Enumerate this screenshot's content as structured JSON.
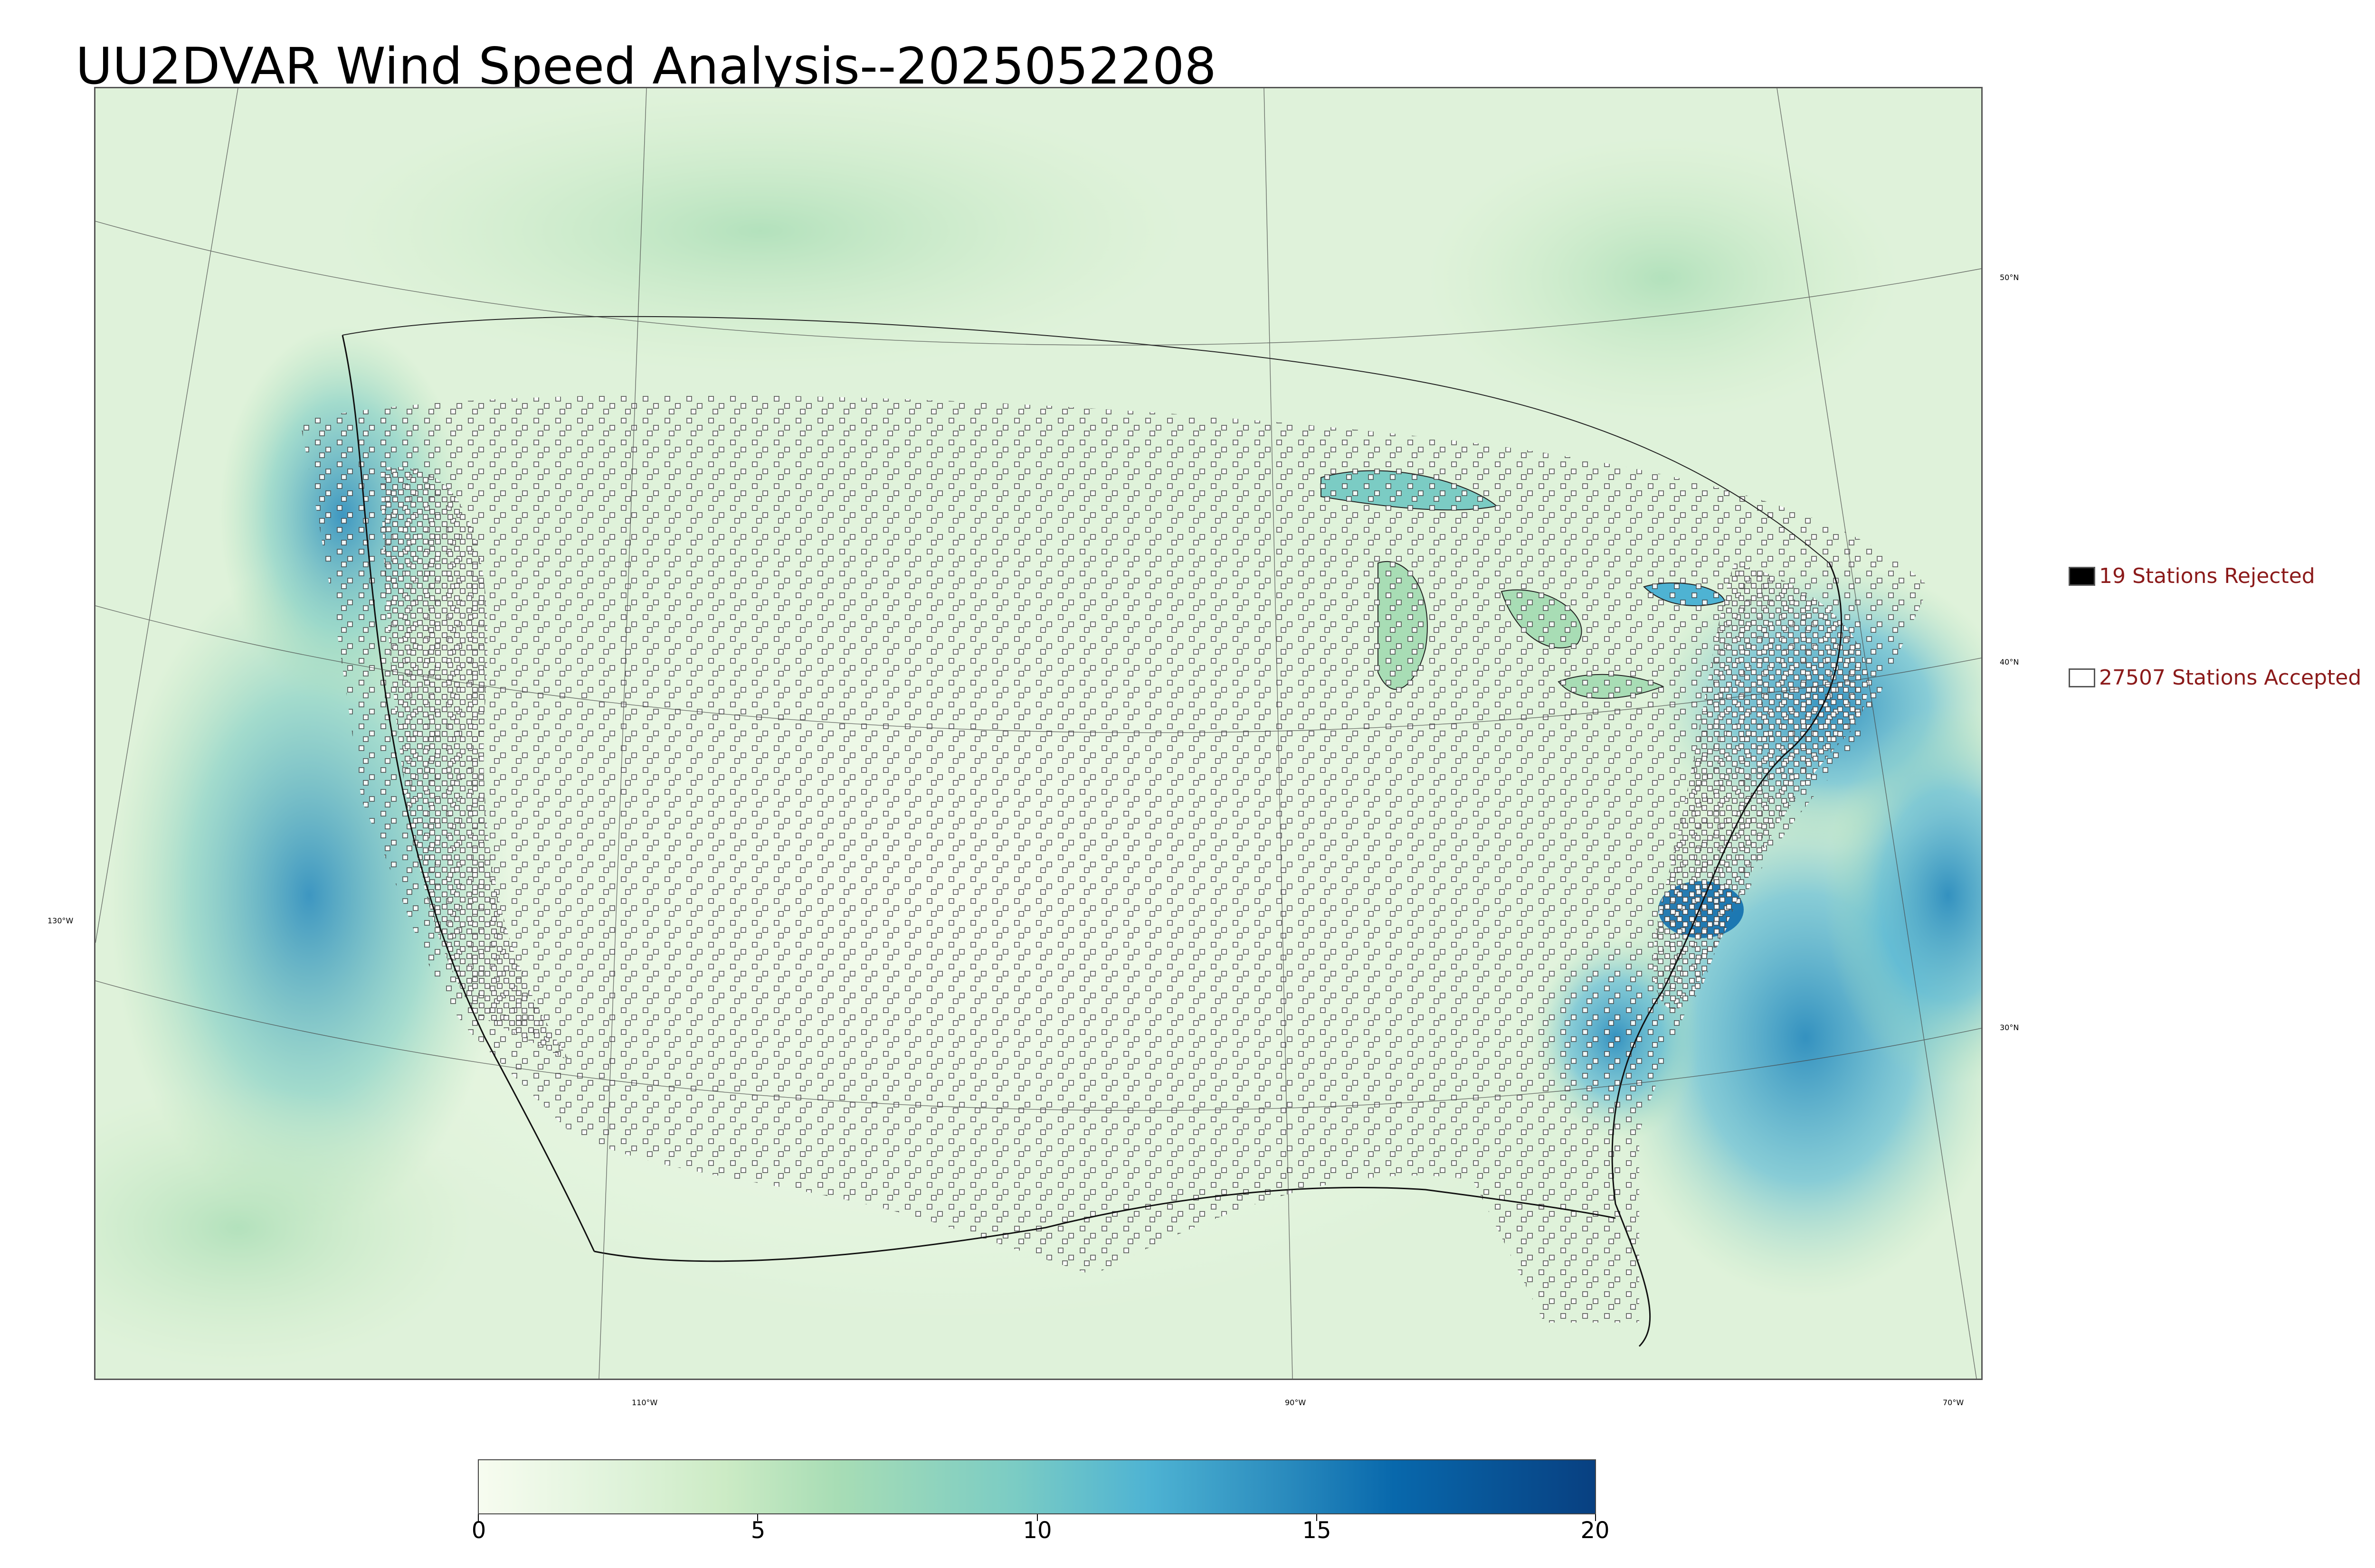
{
  "title": "UU2DVAR Wind Speed Analysis--2025052208",
  "legend": {
    "rejected": {
      "label": "19 Stations Rejected",
      "color": "#000000"
    },
    "accepted": {
      "label": "27507 Stations Accepted",
      "color": "#ffffff"
    }
  },
  "graticule": {
    "lat_labels": [
      "50°N",
      "40°N",
      "30°N"
    ],
    "lon_labels": [
      "130°W",
      "110°W",
      "90°W",
      "70°W"
    ]
  },
  "colorbar": {
    "ticks": [
      "0",
      "5",
      "10",
      "15",
      "20"
    ],
    "range": [
      0,
      20
    ],
    "colors": [
      "#f7fcf0",
      "#e0f3db",
      "#ccebc5",
      "#a8ddb5",
      "#7bccc4",
      "#4eb3d3",
      "#2b8cbe",
      "#0868ac",
      "#084081"
    ]
  }
}
